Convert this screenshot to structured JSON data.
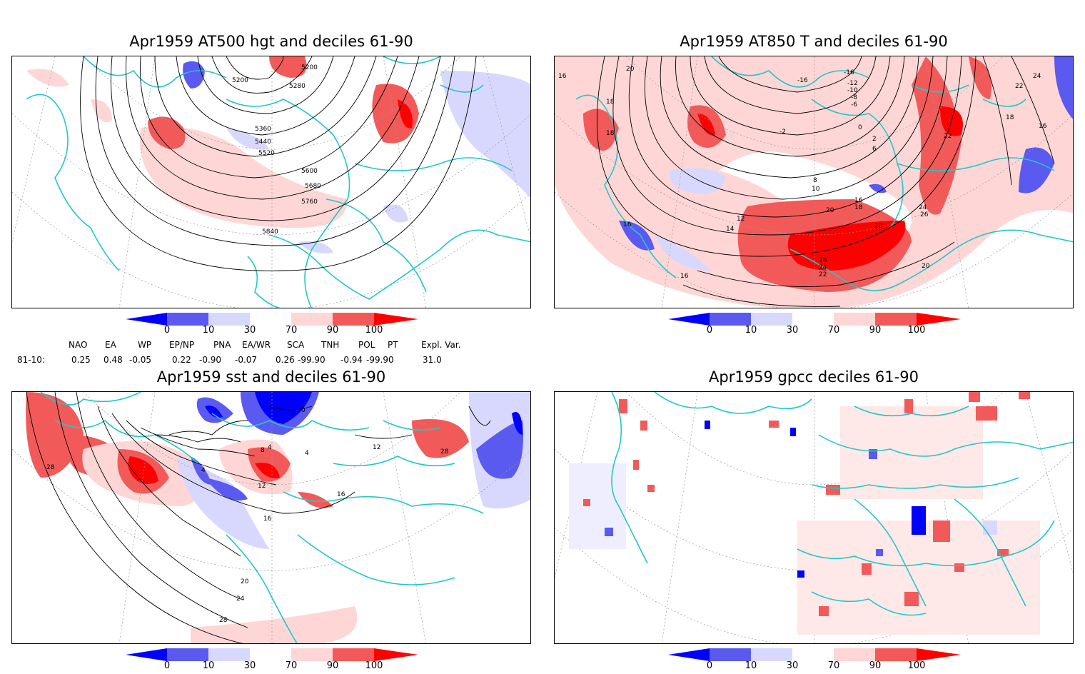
{
  "panels": [
    {
      "title": "Apr1959 AT500 hgt and deciles 61-90",
      "contour_labels": [
        "5200",
        "5200",
        "5280",
        "5360",
        "5440",
        "5520",
        "5600",
        "5680",
        "5760",
        "5840"
      ]
    },
    {
      "title": "Apr1959 AT850 T and deciles 61-90",
      "contour_labels": [
        "16",
        "18",
        "18",
        "20",
        "16",
        "-16",
        "-12",
        "-10",
        "-8",
        "-6",
        "-2",
        "0",
        "2",
        "6",
        "8",
        "10",
        "12",
        "14",
        "16",
        "18",
        "20",
        "24",
        "26",
        "28",
        "26",
        "24",
        "22",
        "22",
        "24",
        "22",
        "18",
        "16",
        "20",
        "16",
        "-16"
      ]
    },
    {
      "title": "Apr1959 sst and deciles 61-90",
      "contour_labels": [
        "28",
        "0",
        "0",
        "8",
        "4",
        "4",
        "4",
        "12",
        "16",
        "16",
        "20",
        "24",
        "28",
        "12",
        "28"
      ]
    },
    {
      "title": "Apr1959 gpcc deciles 61-90",
      "contour_labels": []
    }
  ],
  "colorbar": {
    "ticks": [
      "0",
      "10",
      "30",
      "70",
      "90",
      "100"
    ],
    "colors": {
      "c0": "#0000ff",
      "c1": "#5a5af0",
      "c2": "#d8d8ff",
      "c3": "#ffffff",
      "c4": "#ffd6d6",
      "c5": "#f25a5a",
      "c6": "#ff0000"
    }
  },
  "indices": {
    "headers": [
      "NAO",
      "EA",
      "WP",
      "EP/NP",
      "PNA",
      "EA/WR",
      "SCA",
      "TNH",
      "POL",
      "PT",
      "Expl. Var."
    ],
    "row_label": "81-10:",
    "values": [
      "0.25",
      "0.48",
      "-0.05",
      "0.22",
      "-0.90",
      "-0.07",
      "0.26",
      "-99.90",
      "-0.94",
      "-99.90",
      "31.0"
    ]
  },
  "map_colors": {
    "coast": "#22c8c8",
    "contour": "#000000",
    "grid": "#999999"
  }
}
